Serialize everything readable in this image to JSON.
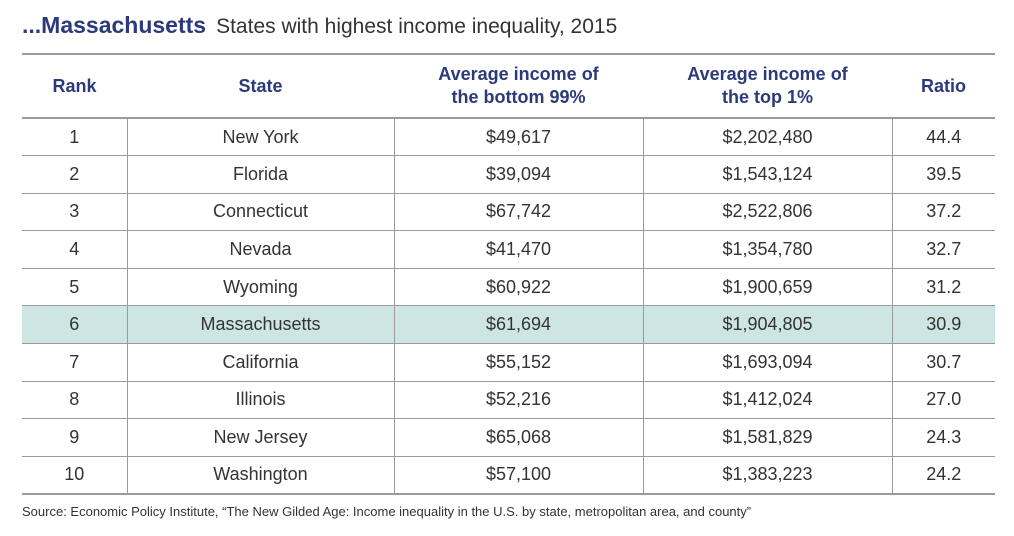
{
  "header": {
    "title": "...Massachusetts",
    "subtitle": "States with highest income inequality, 2015"
  },
  "chart_data": {
    "type": "table",
    "title": "...Massachusetts",
    "subtitle": "States with highest income inequality, 2015",
    "columns": [
      {
        "line1": "Rank",
        "line2": ""
      },
      {
        "line1": "State",
        "line2": ""
      },
      {
        "line1": "Average income of",
        "line2": "the bottom 99%"
      },
      {
        "line1": "Average income of",
        "line2": "the top 1%"
      },
      {
        "line1": "Ratio",
        "line2": ""
      }
    ],
    "rows": [
      {
        "rank": "1",
        "state": "New York",
        "bottom99": "$49,617",
        "top1": "$2,202,480",
        "ratio": "44.4"
      },
      {
        "rank": "2",
        "state": "Florida",
        "bottom99": "$39,094",
        "top1": "$1,543,124",
        "ratio": "39.5"
      },
      {
        "rank": "3",
        "state": "Connecticut",
        "bottom99": "$67,742",
        "top1": "$2,522,806",
        "ratio": "37.2"
      },
      {
        "rank": "4",
        "state": "Nevada",
        "bottom99": "$41,470",
        "top1": "$1,354,780",
        "ratio": "32.7"
      },
      {
        "rank": "5",
        "state": "Wyoming",
        "bottom99": "$60,922",
        "top1": "$1,900,659",
        "ratio": "31.2"
      },
      {
        "rank": "6",
        "state": "Massachusetts",
        "bottom99": "$61,694",
        "top1": "$1,904,805",
        "ratio": "30.9",
        "highlight": true
      },
      {
        "rank": "7",
        "state": "California",
        "bottom99": "$55,152",
        "top1": "$1,693,094",
        "ratio": "30.7"
      },
      {
        "rank": "8",
        "state": "Illinois",
        "bottom99": "$52,216",
        "top1": "$1,412,024",
        "ratio": "27.0"
      },
      {
        "rank": "9",
        "state": "New Jersey",
        "bottom99": "$65,068",
        "top1": "$1,581,829",
        "ratio": "24.3"
      },
      {
        "rank": "10",
        "state": "Washington",
        "bottom99": "$57,100",
        "top1": "$1,383,223",
        "ratio": "24.2"
      }
    ],
    "highlight_color": "#cde6e3",
    "header_color": "#2b3a7a"
  },
  "footer": {
    "source": "Source: Economic Policy Institute, “The New Gilded Age: Income inequality in the U.S. by state, metropolitan area, and county”"
  }
}
